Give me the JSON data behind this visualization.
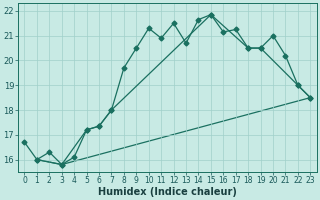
{
  "title": "",
  "xlabel": "Humidex (Indice chaleur)",
  "ylabel": "",
  "bg_color": "#c8eae4",
  "grid_color": "#a0d0ca",
  "line_color": "#1a7060",
  "xlim": [
    -0.5,
    23.5
  ],
  "ylim": [
    15.5,
    22.3
  ],
  "xticks": [
    0,
    1,
    2,
    3,
    4,
    5,
    6,
    7,
    8,
    9,
    10,
    11,
    12,
    13,
    14,
    15,
    16,
    17,
    18,
    19,
    20,
    21,
    22,
    23
  ],
  "yticks": [
    16,
    17,
    18,
    19,
    20,
    21,
    22
  ],
  "line1_x": [
    0,
    1,
    2,
    3,
    4,
    5,
    6,
    7,
    8,
    9,
    10,
    11,
    12,
    13,
    14,
    15,
    16,
    17,
    18,
    19,
    20,
    21,
    22,
    23
  ],
  "line1_y": [
    16.7,
    16.0,
    16.3,
    15.8,
    16.1,
    17.2,
    17.35,
    18.0,
    19.7,
    20.5,
    21.3,
    20.9,
    21.5,
    20.7,
    21.65,
    21.85,
    21.15,
    21.25,
    20.5,
    20.5,
    21.0,
    20.2,
    19.0,
    18.5
  ],
  "line2_x": [
    1,
    3,
    5,
    6,
    7,
    15,
    18,
    19,
    22,
    23
  ],
  "line2_y": [
    16.0,
    15.8,
    17.2,
    17.35,
    18.0,
    21.85,
    20.5,
    20.5,
    19.0,
    18.5
  ],
  "line3_x": [
    1,
    3,
    23
  ],
  "line3_y": [
    16.0,
    15.8,
    18.5
  ],
  "marker_size": 2.5,
  "linewidth": 0.9,
  "tick_fontsize": 6,
  "xlabel_fontsize": 7
}
